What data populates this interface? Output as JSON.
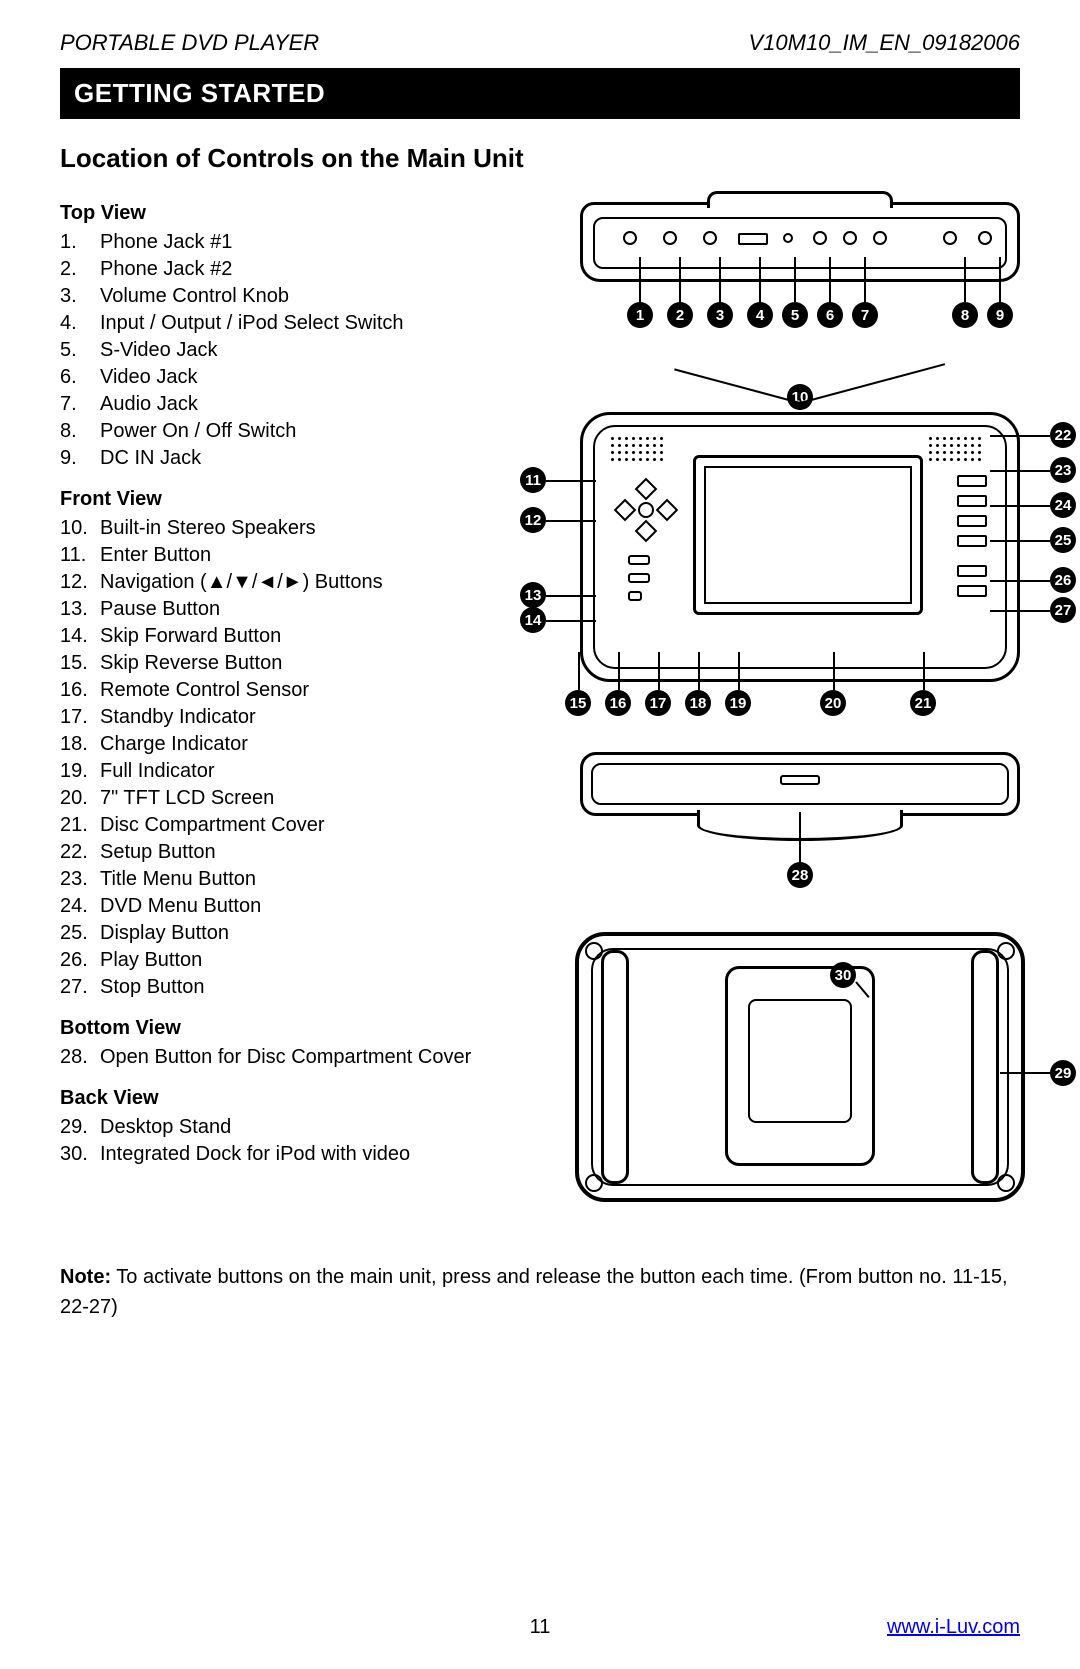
{
  "header": {
    "left": "PORTABLE DVD PLAYER",
    "right": "V10M10_IM_EN_09182006"
  },
  "section_title": "GETTING STARTED",
  "subtitle": "Location of Controls on the Main Unit",
  "views": [
    {
      "heading": "Top View",
      "start": 1,
      "items": [
        "Phone Jack #1",
        "Phone Jack #2",
        "Volume Control Knob",
        "Input / Output / iPod Select Switch",
        "S-Video Jack",
        "Video Jack",
        "Audio Jack",
        "Power On / Off Switch",
        "DC IN Jack"
      ]
    },
    {
      "heading": "Front View",
      "start": 10,
      "items": [
        "Built-in Stereo Speakers",
        "Enter Button",
        "Navigation (▲/▼/◄/►) Buttons",
        "Pause Button",
        "Skip Forward Button",
        "Skip Reverse Button",
        "Remote Control Sensor",
        "Standby Indicator",
        "Charge Indicator",
        "Full Indicator",
        "7\" TFT LCD Screen",
        "Disc Compartment Cover",
        "Setup Button",
        "Title Menu Button",
        "DVD Menu Button",
        "Display Button",
        "Play Button",
        "Stop Button"
      ]
    },
    {
      "heading": "Bottom View",
      "start": 28,
      "items": [
        "Open Button for Disc Compartment Cover"
      ]
    },
    {
      "heading": "Back View",
      "start": 29,
      "items": [
        "Desktop Stand",
        "Integrated Dock for iPod with video"
      ]
    }
  ],
  "note": {
    "label": "Note:",
    "text": " To activate buttons on the main unit, press and release the button each time. (From button no. 11-15, 22-27)"
  },
  "footer": {
    "page": "11",
    "link_text": "www.i-Luv.com"
  },
  "diagrams": {
    "top_callouts": [
      1,
      2,
      3,
      4,
      5,
      6,
      7,
      8,
      9
    ],
    "front_left_callouts": [
      10,
      11,
      12,
      13,
      14
    ],
    "front_bottom_callouts": [
      15,
      16,
      17,
      18,
      19,
      20,
      21
    ],
    "front_right_callouts": [
      22,
      23,
      24,
      25,
      26,
      27
    ],
    "edge_callout": 28,
    "back_callouts": [
      29,
      30
    ]
  },
  "colors": {
    "text": "#000000",
    "background": "#ffffff",
    "bar_bg": "#000000",
    "bar_text": "#ffffff",
    "link": "#0000ee"
  }
}
